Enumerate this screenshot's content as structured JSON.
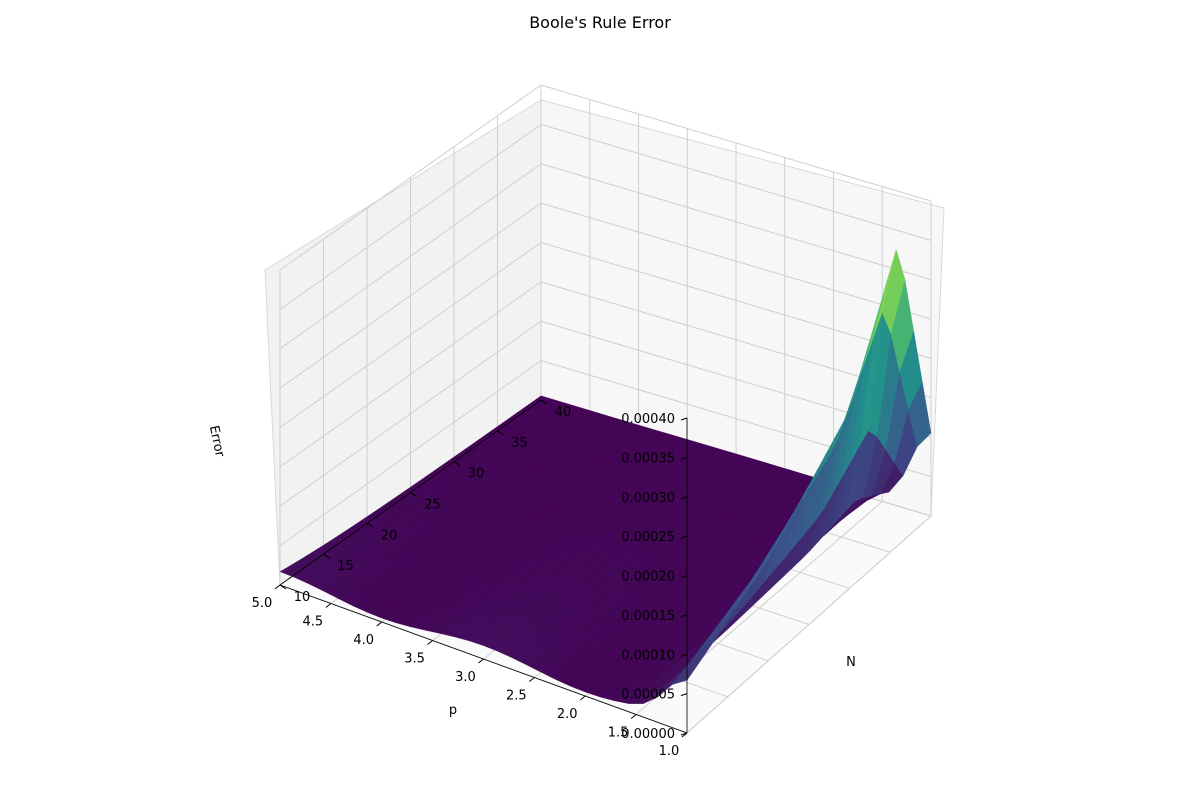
{
  "chart_data": {
    "type": "surface",
    "title": "Boole's Rule Error",
    "xlabel": "p",
    "ylabel": "N",
    "zlabel": "Error",
    "colormap": "viridis",
    "x_ticks": [
      "1.0",
      "1.5",
      "2.0",
      "2.5",
      "3.0",
      "3.5",
      "4.0",
      "4.5",
      "5.0"
    ],
    "y_ticks": [
      "10",
      "15",
      "20",
      "25",
      "30",
      "35",
      "40"
    ],
    "z_ticks": [
      "0.00000",
      "0.00005",
      "0.00010",
      "0.00015",
      "0.00020",
      "0.00025",
      "0.00030",
      "0.00035",
      "0.00040"
    ],
    "xlim": [
      1.0,
      5.0
    ],
    "ylim": [
      10,
      40
    ],
    "zlim": [
      0,
      0.0004
    ],
    "grid": true,
    "peak": {
      "p": 1.0,
      "N": 36,
      "error": 0.00038
    },
    "near_p1_error_at_N": [
      {
        "N": 10,
        "error": 5e-05
      },
      {
        "N": 20,
        "error": 0.00012
      },
      {
        "N": 30,
        "error": 0.00022
      },
      {
        "N": 36,
        "error": 0.00038
      },
      {
        "N": 40,
        "error": 0.0001
      }
    ],
    "baseline_error_high_p": 1e-05
  }
}
